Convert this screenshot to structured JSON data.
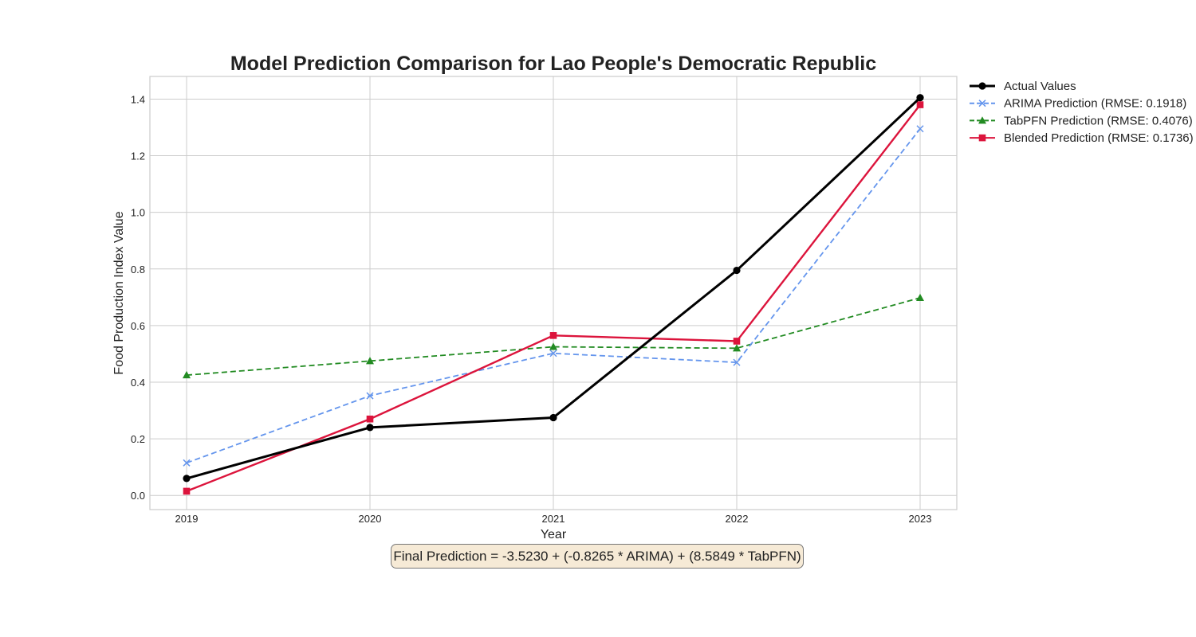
{
  "chart_data": {
    "type": "line",
    "title": "Model Prediction Comparison for Lao People's Democratic Republic",
    "xlabel": "Year",
    "ylabel": "Food Production Index Value",
    "x": [
      "2019",
      "2020",
      "2021",
      "2022",
      "2023"
    ],
    "ylim": [
      -0.05,
      1.48
    ],
    "yticks": [
      0.0,
      0.2,
      0.4,
      0.6,
      0.8,
      1.0,
      1.2,
      1.4
    ],
    "grid": true,
    "legend_position": "outside-right-top",
    "series": [
      {
        "name": "Actual Values",
        "values": [
          0.06,
          0.24,
          0.275,
          0.795,
          1.405
        ],
        "color": "#000000",
        "style": "solid",
        "marker": "circle"
      },
      {
        "name": "ARIMA Prediction (RMSE: 0.1918)",
        "values": [
          0.115,
          0.352,
          0.502,
          0.47,
          1.295
        ],
        "color": "#6495ed",
        "style": "dashed",
        "marker": "x"
      },
      {
        "name": "TabPFN Prediction (RMSE: 0.4076)",
        "values": [
          0.425,
          0.475,
          0.525,
          0.52,
          0.698
        ],
        "color": "#228b22",
        "style": "dashed",
        "marker": "triangle"
      },
      {
        "name": "Blended Prediction (RMSE: 0.1736)",
        "values": [
          0.015,
          0.27,
          0.565,
          0.545,
          1.38
        ],
        "color": "#dc143c",
        "style": "solid",
        "marker": "square"
      }
    ],
    "annotation": "Final Prediction = -3.5230 + (-0.8265 * ARIMA) + (8.5849 * TabPFN)"
  }
}
